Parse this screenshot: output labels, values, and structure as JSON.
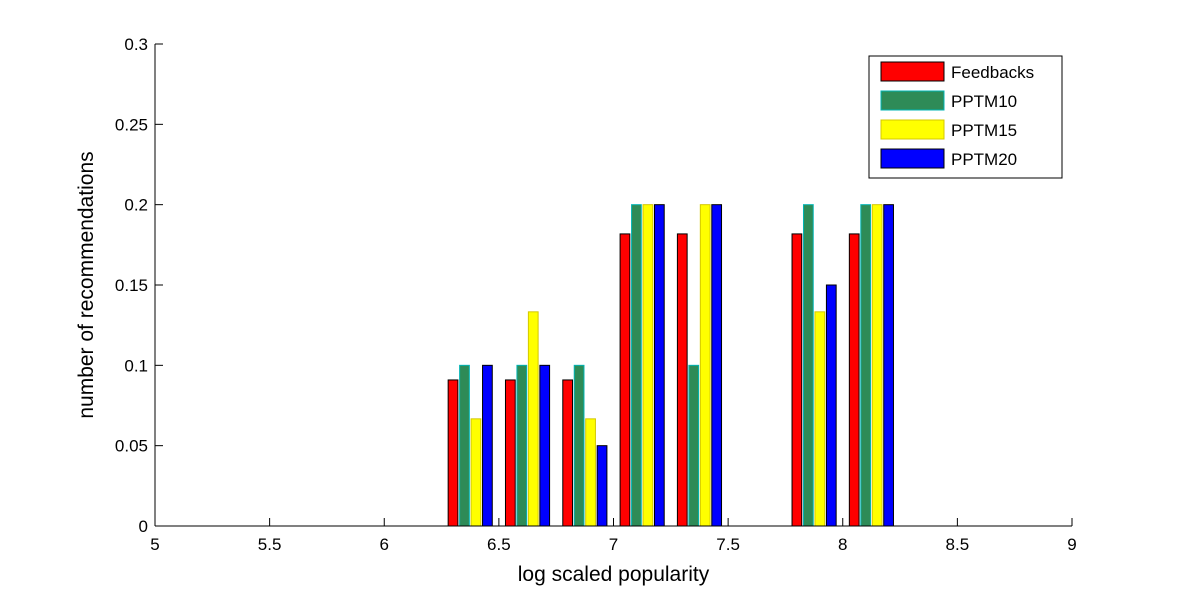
{
  "chart_data": {
    "type": "bar",
    "title": "",
    "xlabel": "log scaled popularity",
    "ylabel": "number of recommendations",
    "xlim": [
      5,
      9
    ],
    "ylim": [
      0,
      0.3
    ],
    "xticks": [
      "5",
      "5.5",
      "6",
      "6.5",
      "7",
      "7.5",
      "8",
      "8.5",
      "9"
    ],
    "yticks": [
      "0",
      "0.05",
      "0.1",
      "0.15",
      "0.2",
      "0.25",
      "0.3"
    ],
    "x": [
      5.125,
      5.375,
      5.625,
      5.875,
      6.125,
      6.375,
      6.625,
      6.875,
      7.125,
      7.375,
      7.625,
      7.875,
      8.125,
      8.375,
      8.625,
      8.875
    ],
    "series": [
      {
        "name": "Feedbacks",
        "color": "#ff0000",
        "edge": "#000000",
        "values": [
          0,
          0,
          0,
          0,
          0,
          0.0909,
          0.0909,
          0.0909,
          0.1818,
          0.1818,
          0,
          0.1818,
          0.1818,
          0,
          0,
          0
        ]
      },
      {
        "name": "PPTM10",
        "color": "#2e8b57",
        "edge": "#00b4b4",
        "values": [
          0,
          0,
          0,
          0,
          0,
          0.1,
          0.1,
          0.1,
          0.2,
          0.1,
          0,
          0.2,
          0.2,
          0,
          0,
          0
        ]
      },
      {
        "name": "PPTM15",
        "color": "#ffff00",
        "edge": "#d4c800",
        "values": [
          0,
          0,
          0,
          0,
          0,
          0.0667,
          0.1333,
          0.0667,
          0.2,
          0.2,
          0,
          0.1333,
          0.2,
          0,
          0,
          0
        ]
      },
      {
        "name": "PPTM20",
        "color": "#0000ff",
        "edge": "#000000",
        "values": [
          0,
          0,
          0,
          0,
          0,
          0.1,
          0.1,
          0.05,
          0.2,
          0.2,
          0,
          0.15,
          0.2,
          0,
          0,
          0
        ]
      }
    ],
    "legend": "top-right",
    "grid": false
  }
}
